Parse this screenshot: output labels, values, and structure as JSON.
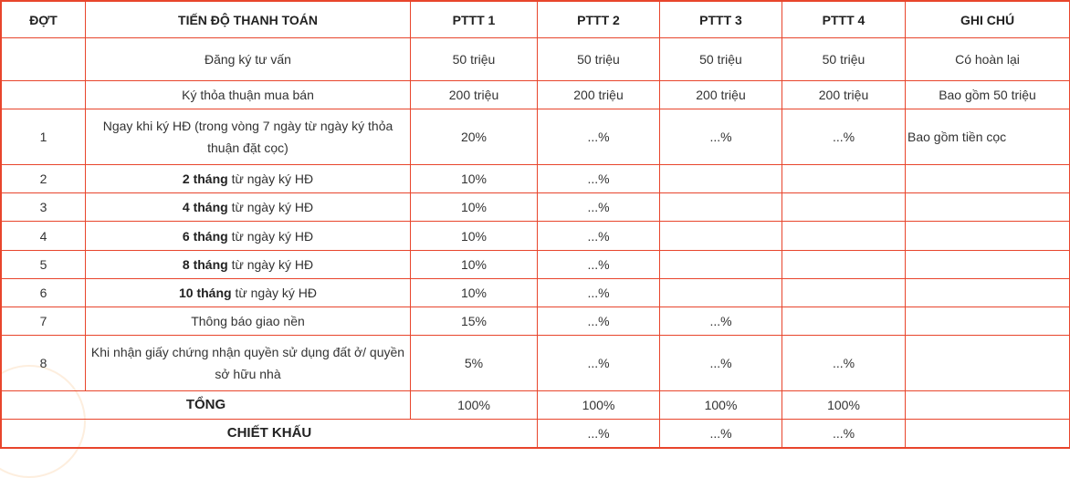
{
  "headers": {
    "dot": "ĐỢT",
    "tien_do": "TIẾN ĐỘ THANH TOÁN",
    "pttt1": "PTTT 1",
    "pttt2": "PTTT 2",
    "pttt3": "PTTT 3",
    "pttt4": "PTTT 4",
    "ghi_chu": "GHI CHÚ"
  },
  "rows": {
    "dang_ky": {
      "dot": "",
      "label": "Đăng ký tư vấn",
      "p1": "50 triệu",
      "p2": "50 triệu",
      "p3": "50 triệu",
      "p4": "50 triệu",
      "note": "Có hoàn lại"
    },
    "thoa_thuan": {
      "dot": "",
      "label": "Ký thỏa thuận mua bán",
      "p1": "200 triệu",
      "p2": "200 triệu",
      "p3": "200 triệu",
      "p4": "200 triệu",
      "note": "Bao gồm 50 triệu"
    },
    "r1": {
      "dot": "1",
      "label": "Ngay khi ký HĐ (trong vòng 7 ngày từ ngày ký thỏa thuận đặt cọc)",
      "p1": "20%",
      "p2": "...%",
      "p3": "...%",
      "p4": "...%",
      "note": "Bao gồm tiền cọc"
    },
    "r2": {
      "dot": "2",
      "label_bold": "2 tháng",
      "label_rest": " từ ngày ký HĐ",
      "p1": "10%",
      "p2": "...%"
    },
    "r3": {
      "dot": "3",
      "label_bold": "4 tháng",
      "label_rest": " từ ngày ký HĐ",
      "p1": "10%",
      "p2": "...%"
    },
    "r4": {
      "dot": "4",
      "label_bold": "6 tháng",
      "label_rest": " từ ngày ký HĐ",
      "p1": "10%",
      "p2": "...%"
    },
    "r5": {
      "dot": "5",
      "label_bold": "8 tháng",
      "label_rest": " từ ngày ký HĐ",
      "p1": "10%",
      "p2": "...%"
    },
    "r6": {
      "dot": "6",
      "label_bold": "10 tháng",
      "label_rest": " từ ngày ký HĐ",
      "p1": "10%",
      "p2": "...%"
    },
    "r7": {
      "dot": "7",
      "label": "Thông báo giao nền",
      "p1": "15%",
      "p2": "...%",
      "p3": "...%"
    },
    "r8": {
      "dot": "8",
      "label": "Khi nhận giấy chứng nhận quyền sử dụng đất ở/ quyền sở hữu nhà",
      "p1": "5%",
      "p2": "...%",
      "p3": "...%",
      "p4": "...%"
    },
    "tong": {
      "label": "TỔNG",
      "p1": "100%",
      "p2": "100%",
      "p3": "100%",
      "p4": "100%"
    },
    "chiet_khau": {
      "label": "CHIẾT KHẤU",
      "p2": "...%",
      "p3": "...%",
      "p4": "...%"
    }
  },
  "colors": {
    "border": "#e8452c",
    "text": "#333333"
  }
}
